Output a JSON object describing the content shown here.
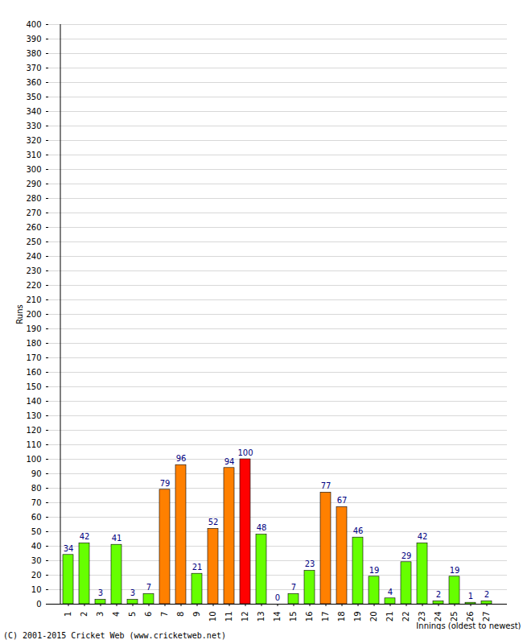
{
  "chart_data": {
    "type": "bar",
    "caption": "(C) 2001-2015 Cricket Web (www.cricketweb.net)",
    "x_label": "Innings (oldest to newest)",
    "y_label": "Runs",
    "categories": [
      "1",
      "2",
      "3",
      "4",
      "5",
      "6",
      "7",
      "8",
      "9",
      "10",
      "11",
      "12",
      "13",
      "14",
      "15",
      "16",
      "17",
      "18",
      "19",
      "20",
      "21",
      "22",
      "23",
      "24",
      "25",
      "26",
      "27"
    ],
    "values": [
      34,
      42,
      3,
      41,
      3,
      7,
      79,
      96,
      21,
      52,
      94,
      100,
      48,
      0,
      7,
      23,
      77,
      67,
      46,
      19,
      4,
      29,
      42,
      2,
      19,
      1,
      2
    ],
    "colors": [
      "#66ff00",
      "#66ff00",
      "#66ff00",
      "#66ff00",
      "#66ff00",
      "#66ff00",
      "#ff8000",
      "#ff8000",
      "#66ff00",
      "#ff8000",
      "#ff8000",
      "#ff0000",
      "#66ff00",
      "#66ff00",
      "#66ff00",
      "#66ff00",
      "#ff8000",
      "#ff8000",
      "#66ff00",
      "#66ff00",
      "#66ff00",
      "#66ff00",
      "#66ff00",
      "#66ff00",
      "#66ff00",
      "#66ff00",
      "#66ff00"
    ],
    "ylim": [
      0,
      400
    ],
    "yticks": [
      0,
      10,
      20,
      30,
      40,
      50,
      60,
      70,
      80,
      90,
      100,
      110,
      120,
      130,
      140,
      150,
      160,
      170,
      180,
      190,
      200,
      210,
      220,
      230,
      240,
      250,
      260,
      270,
      280,
      290,
      300,
      310,
      320,
      330,
      340,
      350,
      360,
      370,
      380,
      390,
      400
    ],
    "grid": true,
    "data_labels": true
  }
}
